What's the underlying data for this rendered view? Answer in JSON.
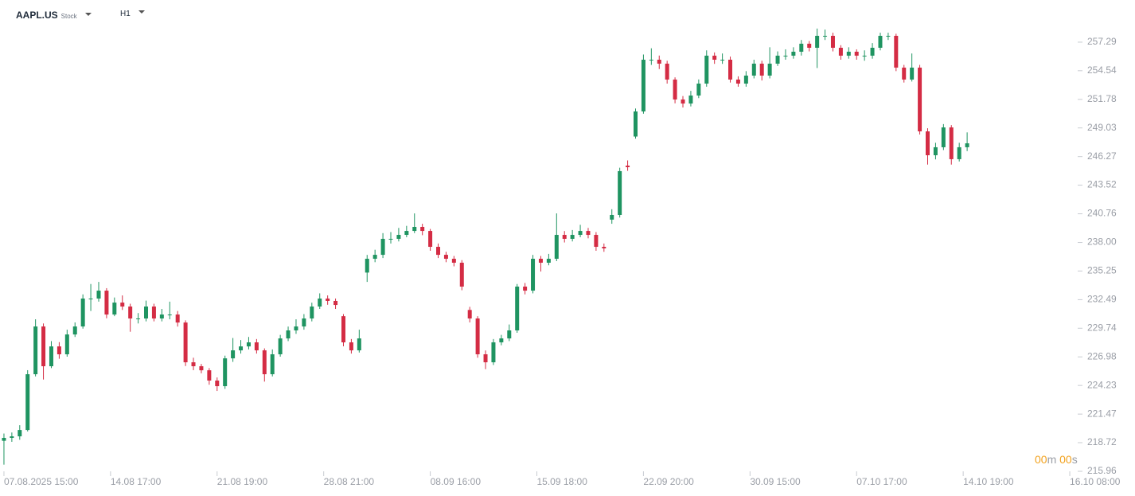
{
  "header": {
    "symbol": "AAPL.US",
    "asset_type": "Stock",
    "timeframe": "H1"
  },
  "countdown": {
    "minutes": "00",
    "minutes_unit": "m",
    "seconds": "00",
    "seconds_unit": "s"
  },
  "chart_data": {
    "type": "candlestick",
    "up_color": "#1f9461",
    "down_color": "#d42c44",
    "open": [
      218.9,
      219.18,
      219.33,
      219.94,
      225.31,
      229.91,
      226.08,
      227.99,
      227.23,
      229.14,
      229.91,
      232.6,
      232.6,
      233.36,
      231.06,
      232.21,
      231.83,
      230.68,
      230.68,
      231.83,
      230.68,
      231.06,
      231.06,
      230.29,
      226.46,
      226.08,
      225.69,
      224.7,
      224.16,
      226.84,
      227.61,
      227.99,
      228.38,
      227.61,
      225.31,
      227.23,
      228.76,
      229.53,
      229.91,
      230.68,
      231.83,
      232.6,
      232.37,
      230.9,
      228.38,
      227.61,
      235.1,
      236.43,
      236.81,
      238.35,
      238.35,
      238.73,
      239.11,
      239.5,
      239.11,
      237.58,
      236.81,
      236.43,
      236.05,
      231.5,
      230.68,
      227.23,
      226.46,
      228.38,
      228.76,
      229.53,
      233.75,
      233.36,
      236.43,
      236.05,
      236.43,
      238.73,
      238.35,
      238.73,
      239.11,
      238.73,
      237.58,
      240.2,
      240.65,
      245.4,
      248.2,
      250.62,
      255.6,
      255.6,
      255.22,
      253.69,
      251.77,
      251.38,
      252.15,
      253.3,
      255.99,
      255.6,
      255.6,
      253.69,
      253.3,
      254.07,
      255.22,
      254.07,
      255.22,
      255.99,
      255.99,
      256.37,
      257.14,
      256.75,
      257.9,
      257.9,
      256.75,
      255.99,
      256.37,
      255.99,
      255.99,
      256.75,
      257.9,
      257.9,
      254.84,
      253.69,
      254.84,
      248.7,
      246.4,
      247.17,
      249.08,
      246.02,
      247.17
    ],
    "high": [
      219.6,
      219.7,
      220.4,
      225.7,
      230.6,
      230.2,
      228.5,
      228.4,
      229.6,
      230.3,
      233.0,
      234.0,
      234.2,
      233.6,
      232.7,
      232.9,
      232.1,
      231.2,
      232.4,
      232.1,
      231.6,
      232.3,
      231.4,
      230.5,
      226.9,
      226.3,
      225.9,
      225.0,
      227.1,
      228.8,
      228.6,
      228.9,
      228.7,
      227.8,
      227.7,
      229.1,
      229.9,
      230.6,
      231.1,
      232.2,
      233.1,
      232.9,
      232.6,
      231.1,
      228.7,
      229.6,
      236.8,
      237.3,
      238.9,
      239.0,
      239.4,
      239.6,
      240.8,
      239.8,
      239.3,
      237.9,
      237.1,
      236.7,
      236.3,
      231.8,
      230.9,
      227.6,
      228.7,
      229.1,
      230.1,
      234.0,
      234.1,
      236.8,
      236.7,
      236.9,
      240.8,
      239.1,
      239.2,
      239.7,
      239.4,
      239.0,
      237.9,
      241.2,
      245.2,
      245.9,
      250.9,
      256.1,
      256.7,
      256.0,
      255.5,
      253.9,
      252.1,
      252.6,
      253.7,
      256.5,
      256.3,
      256.2,
      255.9,
      254.0,
      254.5,
      255.6,
      255.5,
      256.8,
      256.4,
      256.6,
      256.8,
      257.5,
      257.4,
      258.6,
      258.5,
      258.2,
      257.0,
      256.8,
      256.6,
      256.5,
      257.2,
      258.2,
      258.2,
      258.1,
      255.1,
      256.2,
      255.1,
      249.0,
      247.6,
      249.4,
      249.3,
      247.6,
      248.6
    ],
    "low": [
      216.6,
      218.8,
      219.0,
      219.8,
      225.1,
      224.8,
      225.9,
      226.8,
      227.0,
      228.9,
      229.7,
      231.4,
      232.3,
      230.7,
      230.9,
      231.5,
      229.4,
      230.2,
      230.4,
      230.4,
      230.4,
      230.6,
      229.9,
      226.1,
      225.7,
      225.4,
      224.3,
      223.7,
      223.9,
      226.5,
      227.3,
      227.7,
      227.3,
      224.6,
      225.1,
      227.0,
      228.5,
      229.2,
      229.6,
      230.4,
      231.6,
      232.0,
      231.6,
      228.0,
      227.3,
      227.4,
      234.2,
      236.1,
      236.5,
      237.9,
      238.1,
      238.5,
      238.9,
      238.7,
      237.2,
      236.5,
      236.1,
      235.7,
      233.4,
      230.3,
      226.9,
      225.8,
      226.2,
      228.1,
      228.5,
      229.3,
      233.0,
      233.1,
      235.2,
      235.8,
      236.2,
      238.0,
      238.1,
      238.5,
      238.4,
      237.2,
      237.1,
      239.8,
      240.4,
      244.9,
      248.0,
      250.4,
      255.1,
      254.7,
      253.3,
      251.4,
      251.0,
      251.1,
      251.9,
      253.0,
      255.2,
      255.2,
      253.4,
      253.0,
      253.0,
      253.8,
      253.6,
      253.8,
      255.0,
      255.6,
      255.7,
      256.0,
      256.4,
      254.8,
      257.5,
      256.4,
      255.6,
      255.7,
      255.6,
      255.5,
      255.7,
      256.5,
      257.5,
      254.5,
      253.4,
      253.5,
      248.4,
      245.5,
      246.0,
      246.9,
      245.5,
      245.8,
      246.8
    ],
    "close": [
      219.18,
      219.33,
      219.94,
      225.31,
      229.91,
      226.08,
      227.99,
      227.23,
      229.14,
      229.91,
      232.6,
      232.6,
      233.36,
      231.06,
      232.21,
      231.83,
      230.68,
      230.68,
      231.83,
      230.68,
      231.06,
      231.06,
      230.29,
      226.46,
      226.08,
      225.69,
      224.7,
      224.16,
      226.84,
      227.61,
      227.99,
      228.38,
      227.61,
      225.31,
      227.23,
      228.76,
      229.53,
      229.91,
      230.68,
      231.83,
      232.6,
      232.37,
      231.98,
      228.38,
      227.61,
      228.76,
      236.43,
      236.81,
      238.35,
      238.35,
      238.73,
      239.11,
      239.5,
      239.11,
      237.58,
      236.81,
      236.43,
      236.05,
      233.75,
      230.68,
      227.23,
      226.46,
      228.38,
      228.76,
      229.53,
      233.75,
      233.36,
      236.43,
      236.05,
      236.43,
      238.73,
      238.35,
      238.73,
      239.11,
      238.73,
      237.58,
      237.43,
      240.65,
      244.87,
      245.25,
      250.62,
      255.6,
      255.6,
      255.22,
      253.69,
      251.77,
      251.38,
      252.15,
      253.3,
      255.99,
      255.6,
      255.6,
      253.69,
      253.3,
      254.07,
      255.22,
      254.07,
      255.22,
      255.99,
      255.99,
      256.37,
      257.14,
      256.75,
      257.9,
      257.9,
      256.75,
      255.99,
      256.37,
      255.99,
      255.99,
      256.75,
      257.9,
      257.9,
      254.84,
      253.69,
      254.84,
      248.7,
      246.4,
      247.17,
      249.08,
      246.02,
      247.17,
      247.55
    ],
    "xlim": [
      -0.5,
      135.6
    ],
    "xticks": [
      {
        "value": 0,
        "label": "07.08.2025 15:00"
      },
      {
        "value": 13.5,
        "label": "14.08 17:00"
      },
      {
        "value": 27,
        "label": "21.08 19:00"
      },
      {
        "value": 40.5,
        "label": "28.08 21:00"
      },
      {
        "value": 54,
        "label": "08.09 16:00"
      },
      {
        "value": 67.5,
        "label": "15.09 18:00"
      },
      {
        "value": 81,
        "label": "22.09 20:00"
      },
      {
        "value": 94.5,
        "label": "30.09 15:00"
      },
      {
        "value": 108,
        "label": "07.10 17:00"
      },
      {
        "value": 121.5,
        "label": "14.10 19:00"
      },
      {
        "value": 135,
        "label": "16.10 08:00"
      }
    ],
    "ylim": [
      215.96,
      259.05
    ],
    "yticks": [
      215.96,
      218.72,
      221.47,
      224.23,
      226.98,
      229.74,
      232.49,
      235.25,
      {
        "value": 238,
        "label": "238.00"
      },
      240.76,
      243.52,
      246.27,
      249.03,
      251.78,
      254.54,
      257.29
    ]
  }
}
